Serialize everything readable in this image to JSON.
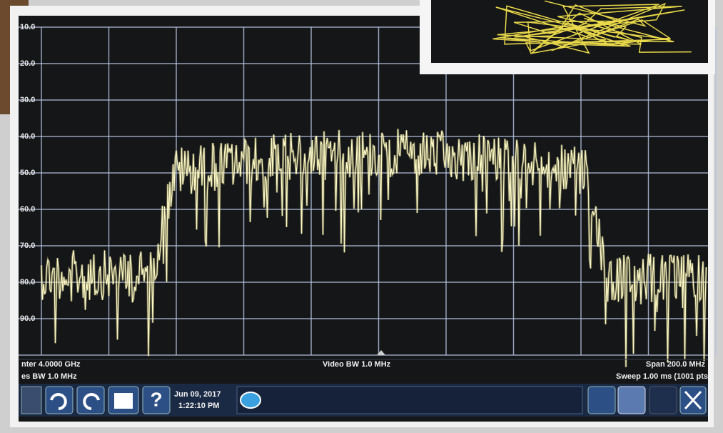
{
  "axis": {
    "labels": [
      "10.0",
      "20.0",
      "30.0",
      "40.0",
      "50.0",
      "60.0",
      "70.0",
      "80.0",
      "90.0"
    ]
  },
  "status": {
    "center": "nter 4.0000 GHz",
    "video_bw": "Video BW 1.0 MHz",
    "span": "Span 200.0 MHz",
    "res_bw": "es BW 1.0 MHz",
    "sweep": "Sweep 1.00 ms (1001 pts"
  },
  "taskbar": {
    "date": "Jun 09, 2017",
    "time": "1:22:10 PM"
  }
}
